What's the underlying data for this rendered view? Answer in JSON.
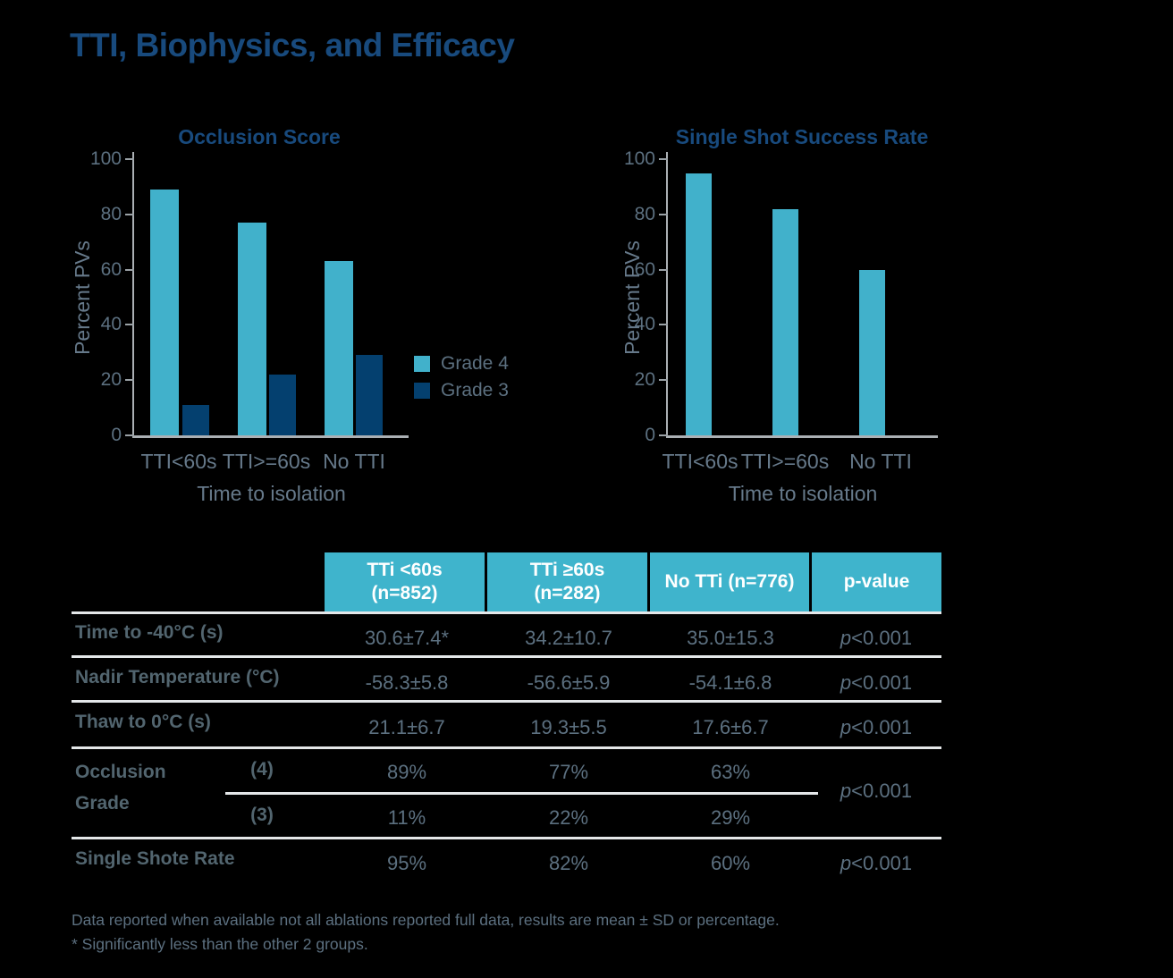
{
  "page": {
    "title": "TTI, Biophysics, and Efficacy"
  },
  "colors": {
    "background": "#000000",
    "heading_blue": "#184A7D",
    "bar_light_blue": "#41B1CB",
    "bar_dark_navy": "#04406F",
    "table_header_teal": "#3FB4CC",
    "gray_text": "#5C7080",
    "axis_gray": "#ABB0B4",
    "rule_light": "#E4E7E9"
  },
  "chart_data": [
    {
      "type": "bar",
      "title": "Occlusion Score",
      "ylabel": "Percent PVs",
      "xlabel": "Time to isolation",
      "categories": [
        "TTI<60s",
        "TTI>=60s",
        "No TTI"
      ],
      "series": [
        {
          "name": "Grade 4",
          "color": "#41B1CB",
          "values": [
            89,
            77,
            63
          ]
        },
        {
          "name": "Grade 3",
          "color": "#04406F",
          "values": [
            11,
            22,
            29
          ]
        }
      ],
      "ylim": [
        0,
        100
      ],
      "yticks": [
        0,
        20,
        40,
        60,
        80,
        100
      ],
      "grid": false,
      "legend_position": "right"
    },
    {
      "type": "bar",
      "title": "Single Shot Success Rate",
      "ylabel": "Percent PVs",
      "xlabel": "Time to isolation",
      "categories": [
        "TTI<60s",
        "TTI>=60s",
        "No TTI"
      ],
      "series": [
        {
          "name": "Single shot success",
          "color": "#41B1CB",
          "values": [
            95,
            82,
            60
          ]
        }
      ],
      "ylim": [
        0,
        100
      ],
      "yticks": [
        0,
        20,
        40,
        60,
        80,
        100
      ],
      "grid": false,
      "legend_position": "none"
    }
  ],
  "table": {
    "header": [
      {
        "line1": "TTi <60s",
        "line2": "(n=852)"
      },
      {
        "line1": "TTi ≥60s",
        "line2": "(n=282)"
      },
      {
        "line1": "No TTi (n=776)",
        "line2": ""
      },
      {
        "line1": "p-value",
        "line2": ""
      }
    ],
    "rows": [
      {
        "label": "Time to -40°C (s)",
        "values": [
          "30.6±7.4*",
          "34.2±10.7",
          "35.0±15.3"
        ],
        "p_value": "p<0.001"
      },
      {
        "label": "Nadir Temperature (°C)",
        "values": [
          "-58.3±5.8",
          "-56.6±5.9",
          "-54.1±6.8"
        ],
        "p_value": "p<0.001"
      },
      {
        "label": "Thaw to 0°C (s)",
        "values": [
          "21.1±6.7",
          "19.3±5.5",
          "17.6±6.7"
        ],
        "p_value": "p<0.001"
      }
    ],
    "occlusion_grade": {
      "label_line1": "Occlusion",
      "label_line2": "Grade",
      "subrows": [
        {
          "grade": "(4)",
          "values": [
            "89%",
            "77%",
            "63%"
          ]
        },
        {
          "grade": "(3)",
          "values": [
            "11%",
            "22%",
            "29%"
          ]
        }
      ],
      "p_value": "p<0.001"
    },
    "single_shot": {
      "label": "Single Shote Rate",
      "values": [
        "95%",
        "82%",
        "60%"
      ],
      "p_value": "p<0.001"
    }
  },
  "footnotes": [
    "Data reported when available not all ablations reported full data, results are mean ± SD or percentage.",
    "* Significantly less than the other 2 groups."
  ]
}
